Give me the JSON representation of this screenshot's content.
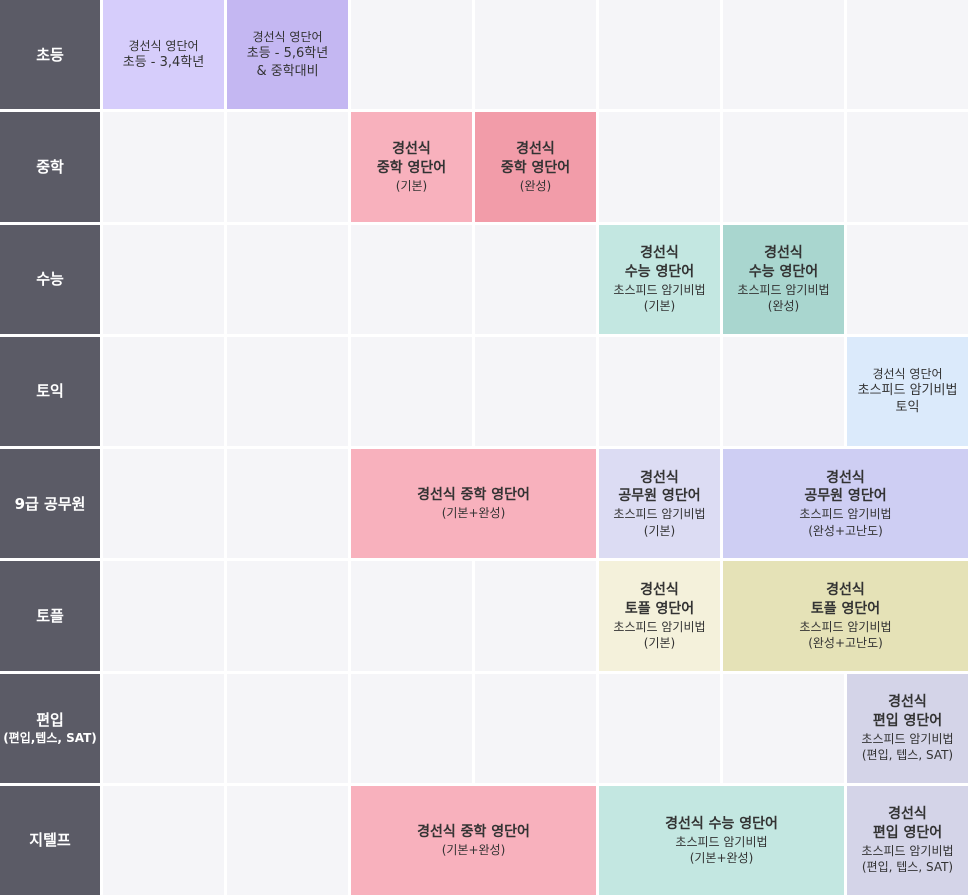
{
  "rows": [
    {
      "label": "초등",
      "sub": ""
    },
    {
      "label": "중학",
      "sub": ""
    },
    {
      "label": "수능",
      "sub": ""
    },
    {
      "label": "토익",
      "sub": ""
    },
    {
      "label": "9급 공무원",
      "sub": ""
    },
    {
      "label": "토플",
      "sub": ""
    },
    {
      "label": "편입",
      "sub": "(편입,텝스, SAT)"
    },
    {
      "label": "지텔프",
      "sub": ""
    }
  ],
  "colors": {
    "header": "#5b5b66",
    "empty": "#f5f5f8",
    "elem_a": "#d6cdfb",
    "elem_b": "#c4b7f2",
    "mid_basic": "#f8b1bd",
    "mid_full": "#f29ca9",
    "suneung_basic": "#c3e7e1",
    "suneung_full": "#a9d6cf",
    "toeic": "#dbeafb",
    "gong_basic": "#dcdcf3",
    "gong_full": "#cecef3",
    "toefl_basic": "#f4f1db",
    "toefl_full": "#e5e2b7",
    "pyeonip": "#d4d4e8"
  },
  "cells": [
    {
      "id": "elem-34",
      "lines": [
        "경선식 영단어",
        "초등 - 3,4학년"
      ],
      "size": "small",
      "color": "#d6cdfb",
      "row": 1,
      "col": 1,
      "span": 1
    },
    {
      "id": "elem-56",
      "lines": [
        "경선식 영단어",
        "초등 - 5,6학년",
        "& 중학대비"
      ],
      "size": "small",
      "color": "#c4b7f2",
      "row": 1,
      "col": 2,
      "span": 1
    },
    {
      "id": "mid-basic",
      "lines": [
        "경선식",
        "중학 영단어",
        "(기본)"
      ],
      "color": "#f8b1bd",
      "row": 2,
      "col": 3,
      "span": 1
    },
    {
      "id": "mid-full",
      "lines": [
        "경선식",
        "중학 영단어",
        "(완성)"
      ],
      "color": "#f29ca9",
      "row": 2,
      "col": 4,
      "span": 1
    },
    {
      "id": "suneung-basic",
      "lines": [
        "경선식",
        "수능 영단어",
        "초스피드 암기비법",
        "(기본)"
      ],
      "color": "#c3e7e1",
      "row": 3,
      "col": 5,
      "span": 1
    },
    {
      "id": "suneung-full",
      "lines": [
        "경선식",
        "수능 영단어",
        "초스피드 암기비법",
        "(완성)"
      ],
      "color": "#a9d6cf",
      "row": 3,
      "col": 6,
      "span": 1
    },
    {
      "id": "toeic",
      "lines": [
        "경선식 영단어",
        "초스피드 암기비법",
        "토익"
      ],
      "size": "small",
      "color": "#dbeafb",
      "row": 4,
      "col": 7,
      "span": 1
    },
    {
      "id": "gong-mid",
      "lines": [
        "경선식 중학 영단어",
        "(기본+완성)"
      ],
      "color": "#f8b1bd",
      "row": 5,
      "col": 3,
      "span": 2
    },
    {
      "id": "gong-basic",
      "lines": [
        "경선식",
        "공무원 영단어",
        "초스피드 암기비법",
        "(기본)"
      ],
      "color": "#dcdcf3",
      "row": 5,
      "col": 5,
      "span": 1
    },
    {
      "id": "gong-full",
      "lines": [
        "경선식",
        "공무원 영단어",
        "초스피드 암기비법",
        "(완성+고난도)"
      ],
      "color": "#cecef3",
      "row": 5,
      "col": 6,
      "span": 2
    },
    {
      "id": "toefl-basic",
      "lines": [
        "경선식",
        "토플 영단어",
        "초스피드 암기비법",
        "(기본)"
      ],
      "color": "#f4f1db",
      "row": 6,
      "col": 5,
      "span": 1
    },
    {
      "id": "toefl-full",
      "lines": [
        "경선식",
        "토플 영단어",
        "초스피드 암기비법",
        "(완성+고난도)"
      ],
      "color": "#e5e2b7",
      "row": 6,
      "col": 6,
      "span": 2
    },
    {
      "id": "pyeonip",
      "lines": [
        "경선식",
        "편입 영단어",
        "초스피드 암기비법",
        "(편입, 텝스, SAT)"
      ],
      "color": "#d4d4e8",
      "row": 7,
      "col": 7,
      "span": 1
    },
    {
      "id": "gtelp-mid",
      "lines": [
        "경선식 중학 영단어",
        "(기본+완성)"
      ],
      "color": "#f8b1bd",
      "row": 8,
      "col": 3,
      "span": 2
    },
    {
      "id": "gtelp-suneung",
      "lines": [
        "경선식 수능 영단어",
        "초스피드 암기비법",
        "(기본+완성)"
      ],
      "color": "#c3e7e1",
      "row": 8,
      "col": 5,
      "span": 2
    },
    {
      "id": "gtelp-pyeonip",
      "lines": [
        "경선식",
        "편입 영단어",
        "초스피드 암기비법",
        "(편입, 텝스, SAT)"
      ],
      "color": "#d4d4e8",
      "row": 8,
      "col": 7,
      "span": 1
    }
  ]
}
